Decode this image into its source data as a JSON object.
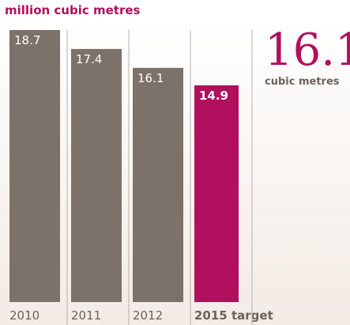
{
  "chart_data": {
    "type": "bar",
    "title": "million cubic metres",
    "categories": [
      "2010",
      "2011",
      "2012",
      "2015 target"
    ],
    "values": [
      18.7,
      17.4,
      16.1,
      14.9
    ],
    "colors": [
      "#7d7269",
      "#7d7269",
      "#7d7269",
      "#b0105d"
    ],
    "ylim": [
      0,
      18.7
    ],
    "annotation": {
      "value": "16.1",
      "unit": "cubic metres"
    }
  }
}
